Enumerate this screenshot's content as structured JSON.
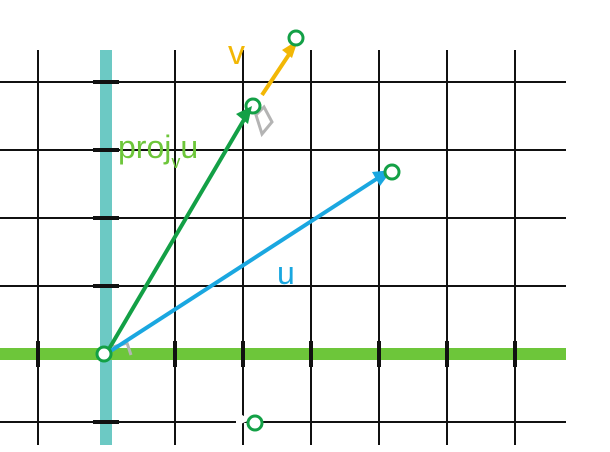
{
  "labels": {
    "v": "v",
    "u": "u",
    "proj_main": "proj",
    "proj_sub": "v",
    "proj_tail": "u"
  },
  "colors": {
    "grid": "#111111",
    "y_axis": "#6cc9c4",
    "x_axis": "#6dc63a",
    "vector_u": "#1aa7e0",
    "vector_v": "#f2b705",
    "projection": "#13a046",
    "point_outline": "#13a046",
    "right_angle_marker": "#b4b4b4",
    "white_arrow": "#ffffff"
  },
  "icons": {
    "arrowhead": "triangle-arrowhead",
    "point": "hollow-circle",
    "right_angle": "square-corner-marker"
  },
  "chart_data": {
    "type": "vector-diagram",
    "grid_unit_cells": true,
    "vectors": [
      {
        "name": "u",
        "from": [
          0,
          0
        ],
        "to": [
          4,
          3
        ]
      },
      {
        "name": "v",
        "from": [
          0,
          0
        ],
        "to": [
          2.8,
          4.7
        ]
      },
      {
        "name": "proj_v u",
        "from": [
          0,
          0
        ],
        "to": [
          2,
          3.6
        ]
      }
    ],
    "points": [
      {
        "at": [
          0,
          0
        ]
      },
      {
        "at": [
          2,
          3.6
        ]
      },
      {
        "at": [
          2.8,
          4.7
        ]
      },
      {
        "at": [
          4,
          2.7
        ]
      },
      {
        "at": [
          2,
          -1
        ]
      }
    ]
  }
}
